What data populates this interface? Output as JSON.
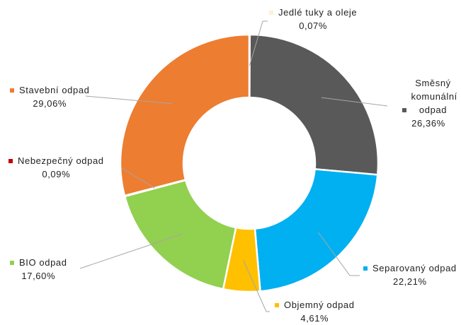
{
  "chart_data": {
    "type": "donut",
    "title": "",
    "slices": [
      {
        "name": "Jedlé tuky a oleje",
        "value": 0.07,
        "label": "0,07%",
        "color": "#FDF1D6"
      },
      {
        "name": "Směsný komunální odpad",
        "value": 26.36,
        "label": "26,36%",
        "color": "#595959"
      },
      {
        "name": "Separovaný odpad",
        "value": 22.21,
        "label": "22,21%",
        "color": "#00B0F0"
      },
      {
        "name": "Objemný odpad",
        "value": 4.61,
        "label": "4,61%",
        "color": "#FFC000"
      },
      {
        "name": "BIO odpad",
        "value": 17.6,
        "label": "17,60%",
        "color": "#92D050"
      },
      {
        "name": "Nebezpečný odpad",
        "value": 0.09,
        "label": "0,09%",
        "color": "#C00000"
      },
      {
        "name": "Stavební odpad",
        "value": 29.06,
        "label": "29,06%",
        "color": "#ED7D31"
      }
    ]
  }
}
